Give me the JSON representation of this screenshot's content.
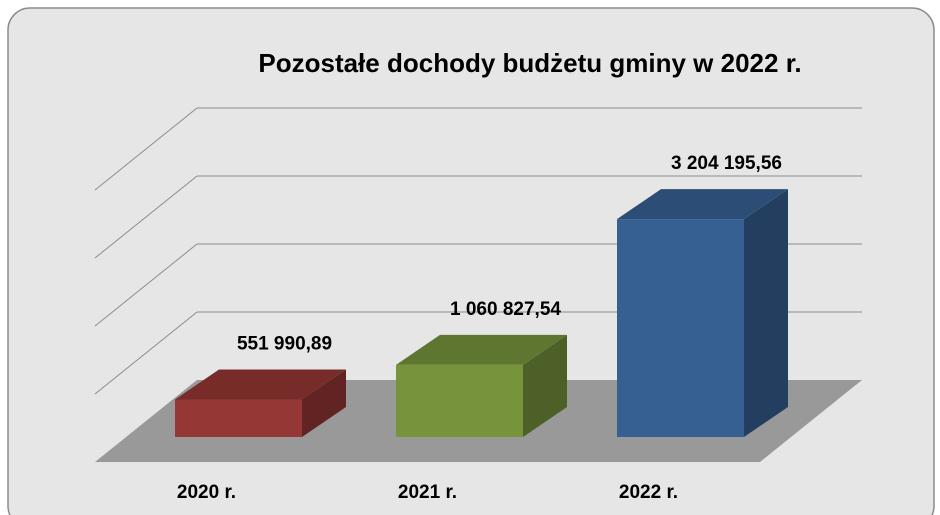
{
  "chart_data": {
    "type": "bar3d",
    "title": "Pozostałe dochody budżetu gminy w 2022 r.",
    "categories": [
      "2020 r.",
      "2021 r.",
      "2022 r."
    ],
    "values": [
      551990.89,
      1060827.54,
      3204195.56
    ],
    "value_labels": [
      "551 990,89",
      "1 060 827,54",
      "3 204 195,56"
    ],
    "colors": [
      "#953735",
      "#77933c",
      "#376092"
    ],
    "ylim": [
      0,
      4000000
    ],
    "yticks": [
      0,
      1000000,
      2000000,
      3000000,
      4000000
    ],
    "grid": true
  }
}
